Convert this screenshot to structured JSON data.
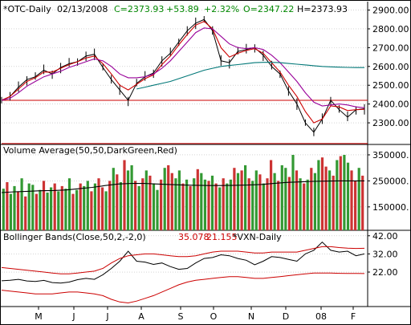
{
  "chart_data": [
    {
      "panel": "price",
      "type": "line",
      "header": {
        "symbol": "*OTC-Daily",
        "date": "02/13/2008",
        "close": "C=2373.93",
        "change": "+53.89",
        "pct": "+2.32%",
        "open": "O=2347.22",
        "high": "H=2373.93"
      },
      "y_ticks": [
        "2900.00",
        "2800.00",
        "2700.00",
        "2600.00",
        "2500.00",
        "2400.00",
        "2300.00"
      ],
      "ylim": [
        2185,
        2945
      ],
      "months": [
        "M",
        "J",
        "J",
        "A",
        "S",
        "O",
        "N",
        "D",
        "08",
        "F"
      ],
      "x": [
        0,
        5,
        10,
        15,
        20,
        25,
        30,
        35,
        40,
        45,
        50,
        55,
        60,
        65,
        70,
        72,
        75,
        80,
        85,
        90,
        95,
        100,
        105,
        110,
        115,
        120,
        125,
        130,
        135,
        140,
        145,
        150,
        155,
        160,
        165,
        170,
        175,
        180,
        185,
        190,
        195,
        200,
        205,
        208
      ],
      "series": [
        {
          "values": [
            2420,
            2440,
            2490,
            2530,
            2545,
            2580,
            2560,
            2595,
            2615,
            2625,
            2655,
            2665,
            2595,
            2530,
            2475,
            2420,
            2510,
            2545,
            2565,
            2630,
            2670,
            2730,
            2790,
            2830,
            2850,
            2790,
            2630,
            2620,
            2680,
            2690,
            2700,
            2660,
            2600,
            2560,
            2470,
            2400,
            2300,
            2250,
            2320,
            2420,
            2370,
            2330,
            2370,
            2375
          ],
          "color": "#000000"
        },
        {
          "values": [
            2420,
            2440,
            2480,
            2520,
            2540,
            2570,
            2570,
            2590,
            2610,
            2625,
            2645,
            2655,
            2615,
            2560,
            2500,
            2475,
            2505,
            2535,
            2555,
            2610,
            2655,
            2715,
            2770,
            2820,
            2840,
            2800,
            2700,
            2650,
            2670,
            2685,
            2695,
            2670,
            2620,
            2570,
            2500,
            2440,
            2360,
            2300,
            2320,
            2390,
            2385,
            2365,
            2370,
            2372
          ],
          "color": "#cc0000"
        },
        {
          "values": [
            2420,
            2430,
            2460,
            2495,
            2520,
            2545,
            2560,
            2575,
            2595,
            2610,
            2625,
            2640,
            2630,
            2600,
            2560,
            2540,
            2540,
            2545,
            2560,
            2590,
            2630,
            2680,
            2730,
            2780,
            2805,
            2800,
            2760,
            2720,
            2700,
            2695,
            2700,
            2690,
            2660,
            2620,
            2570,
            2520,
            2460,
            2410,
            2390,
            2395,
            2400,
            2395,
            2385,
            2380
          ],
          "color": "#990099"
        },
        {
          "values": [
            null,
            null,
            null,
            null,
            null,
            null,
            null,
            null,
            null,
            null,
            null,
            null,
            null,
            null,
            null,
            null,
            2480,
            2490,
            2500,
            2510,
            2520,
            2535,
            2550,
            2565,
            2580,
            2590,
            2600,
            2605,
            2610,
            2615,
            2620,
            2622,
            2622,
            2620,
            2616,
            2612,
            2608,
            2604,
            2600,
            2598,
            2596,
            2595,
            2594,
            2594
          ],
          "color": "#007777"
        }
      ],
      "horizontal_line": {
        "value": 2420,
        "color": "#cc0000"
      },
      "bottom_line": {
        "value": 2190,
        "color": "#cc0000"
      }
    },
    {
      "panel": "volume",
      "type": "bar",
      "title": "Volume Average(50,50,DarkGreen,Red)",
      "y_ticks": [
        "350000.",
        "250000.",
        "150000."
      ],
      "ylim": [
        60000,
        390000
      ],
      "values": [
        220000,
        245000,
        200000,
        230000,
        210000,
        260000,
        190000,
        240000,
        235000,
        200000,
        215000,
        250000,
        205000,
        225000,
        240000,
        210000,
        230000,
        220000,
        260000,
        200000,
        215000,
        240000,
        230000,
        250000,
        210000,
        240000,
        260000,
        225000,
        210000,
        250000,
        300000,
        275000,
        245000,
        330000,
        290000,
        310000,
        250000,
        230000,
        260000,
        290000,
        270000,
        240000,
        215000,
        255000,
        300000,
        310000,
        280000,
        260000,
        290000,
        240000,
        255000,
        230000,
        260000,
        295000,
        280000,
        255000,
        250000,
        270000,
        240000,
        225000,
        260000,
        240000,
        255000,
        300000,
        280000,
        290000,
        310000,
        260000,
        250000,
        290000,
        275000,
        240000,
        260000,
        330000,
        280000,
        250000,
        310000,
        300000,
        265000,
        350000,
        290000,
        260000,
        240000,
        255000,
        300000,
        280000,
        330000,
        340000,
        305000,
        290000,
        270000,
        330000,
        345000,
        350000,
        320000,
        290000,
        250000,
        300000,
        270000
      ],
      "up": [
        true,
        false,
        true,
        true,
        false,
        true,
        false,
        true,
        true,
        false,
        true,
        false,
        true,
        true,
        false,
        true,
        false,
        true,
        true,
        false,
        true,
        false,
        true,
        true,
        false,
        true,
        false,
        false,
        true,
        false,
        true,
        false,
        true,
        false,
        true,
        true,
        false,
        true,
        false,
        true,
        false,
        true,
        true,
        false,
        true,
        false,
        false,
        true,
        true,
        false,
        true,
        false,
        true,
        false,
        true,
        true,
        false,
        true,
        false,
        true,
        false,
        true,
        true,
        false,
        true,
        false,
        true,
        false,
        true,
        true,
        false,
        true,
        false,
        false,
        true,
        false,
        true,
        true,
        false,
        true,
        false,
        true,
        false,
        true,
        false,
        true,
        true,
        false,
        false,
        true,
        false,
        true,
        false,
        true,
        true,
        false,
        false,
        true,
        false
      ],
      "average": [
        205000,
        208000,
        210000,
        212000,
        213000,
        215000,
        220000,
        225000,
        232000,
        238000,
        240000,
        240000,
        238000,
        236000,
        234000,
        233000,
        232000,
        232000,
        233000,
        234000,
        236000,
        240000,
        244000,
        246000,
        248000,
        249000,
        250000,
        250000,
        250000
      ],
      "colors": {
        "up": "#339933",
        "down": "#cc3333",
        "avg": "#000000"
      }
    },
    {
      "panel": "bollinger",
      "type": "line",
      "title": "Bollinger Bands(Close,50,2,-2,0)",
      "upper_value": "35.078",
      "lower_value": "21.155",
      "symbol": "*VXN-Daily",
      "y_ticks": [
        "42.00",
        "32.00",
        "22.00"
      ],
      "ylim": [
        3,
        45
      ],
      "series": [
        {
          "values": [
            17.2,
            17.5,
            18.0,
            17.1,
            16.8,
            17.4,
            16.2,
            15.9,
            16.5,
            17.8,
            18.5,
            18.0,
            20.5,
            24.0,
            28.0,
            33.5,
            28.0,
            27.5,
            26.2,
            27.0,
            25.0,
            23.5,
            24.0,
            27.0,
            29.5,
            30.0,
            31.5,
            31.0,
            29.5,
            28.5,
            26.0,
            28.0,
            30.5,
            30.0,
            29.0,
            28.0,
            32.0,
            34.0,
            38.5,
            34.0,
            33.0,
            33.5,
            31.0,
            32.0
          ],
          "color": "#000000"
        },
        {
          "values": [
            24.5,
            24.0,
            23.5,
            23.0,
            22.5,
            22.0,
            21.5,
            21.0,
            21.0,
            21.5,
            22.0,
            22.5,
            24.0,
            27.0,
            29.5,
            31.0,
            31.5,
            32.0,
            32.0,
            31.5,
            31.0,
            30.5,
            30.5,
            31.0,
            32.0,
            33.0,
            33.5,
            33.5,
            33.5,
            33.0,
            32.5,
            32.5,
            33.0,
            33.0,
            33.0,
            33.0,
            34.0,
            35.0,
            36.0,
            36.0,
            35.5,
            35.2,
            35.0,
            35.078
          ],
          "color": "#cc0000"
        },
        {
          "values": [
            12.0,
            11.5,
            11.0,
            10.5,
            10.0,
            10.0,
            10.0,
            10.5,
            11.0,
            11.0,
            10.5,
            10.0,
            9.0,
            7.0,
            5.5,
            5.0,
            6.0,
            7.5,
            9.0,
            11.0,
            13.0,
            15.0,
            16.5,
            17.5,
            18.0,
            18.5,
            19.0,
            19.5,
            19.5,
            19.0,
            18.5,
            18.5,
            19.0,
            19.5,
            20.0,
            20.5,
            21.0,
            21.5,
            21.5,
            21.5,
            21.3,
            21.2,
            21.2,
            21.155
          ],
          "color": "#cc0000"
        }
      ]
    }
  ]
}
